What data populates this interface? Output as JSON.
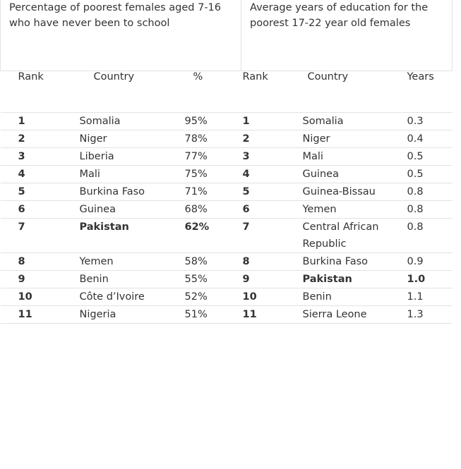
{
  "captions": {
    "left": "Percentage of poorest females aged 7-16 who have never been to school",
    "right": "Average years of education for the poorest 17-22 year old females"
  },
  "headers": {
    "rank_left": "Rank",
    "country_left": "Country",
    "percent": "%",
    "rank_right": "Rank",
    "country_right": "Country",
    "years": "Years"
  },
  "rows": [
    {
      "rank_left": "1",
      "country_left": "Somalia",
      "percent": "95%",
      "rank_right": "1",
      "country_right": "Somalia",
      "years": "0.3"
    },
    {
      "rank_left": "2",
      "country_left": "Niger",
      "percent": "78%",
      "rank_right": "2",
      "country_right": "Niger",
      "years": "0.4"
    },
    {
      "rank_left": "3",
      "country_left": "Liberia",
      "percent": "77%",
      "rank_right": "3",
      "country_right": "Mali",
      "years": "0.5"
    },
    {
      "rank_left": "4",
      "country_left": "Mali",
      "percent": "75%",
      "rank_right": "4",
      "country_right": "Guinea",
      "years": "0.5"
    },
    {
      "rank_left": "5",
      "country_left": "Burkina Faso",
      "percent": "71%",
      "rank_right": "5",
      "country_right": "Guinea-Bissau",
      "years": "0.8"
    },
    {
      "rank_left": "6",
      "country_left": "Guinea",
      "percent": "68%",
      "rank_right": "6",
      "country_right": "Yemen",
      "years": "0.8"
    },
    {
      "rank_left": "7",
      "country_left": "Pakistan",
      "percent": "62%",
      "rank_right": "7",
      "country_right": "Central African Republic",
      "years": "0.8"
    },
    {
      "rank_left": "8",
      "country_left": "Yemen",
      "percent": "58%",
      "rank_right": "8",
      "country_right": "Burkina Faso",
      "years": "0.9"
    },
    {
      "rank_left": "9",
      "country_left": "Benin",
      "percent": "55%",
      "rank_right": "9",
      "country_right": "Pakistan",
      "years": "1.0"
    },
    {
      "rank_left": "10",
      "country_left": "Côte d’Ivoire",
      "percent": "52%",
      "rank_right": "10",
      "country_right": "Benin",
      "years": "1.1"
    },
    {
      "rank_left": "11",
      "country_left": "Nigeria",
      "percent": "51%",
      "rank_right": "11",
      "country_right": "Sierra Leone",
      "years": "1.3"
    }
  ],
  "highlight": {
    "left_row": 6,
    "right_row": 8
  }
}
